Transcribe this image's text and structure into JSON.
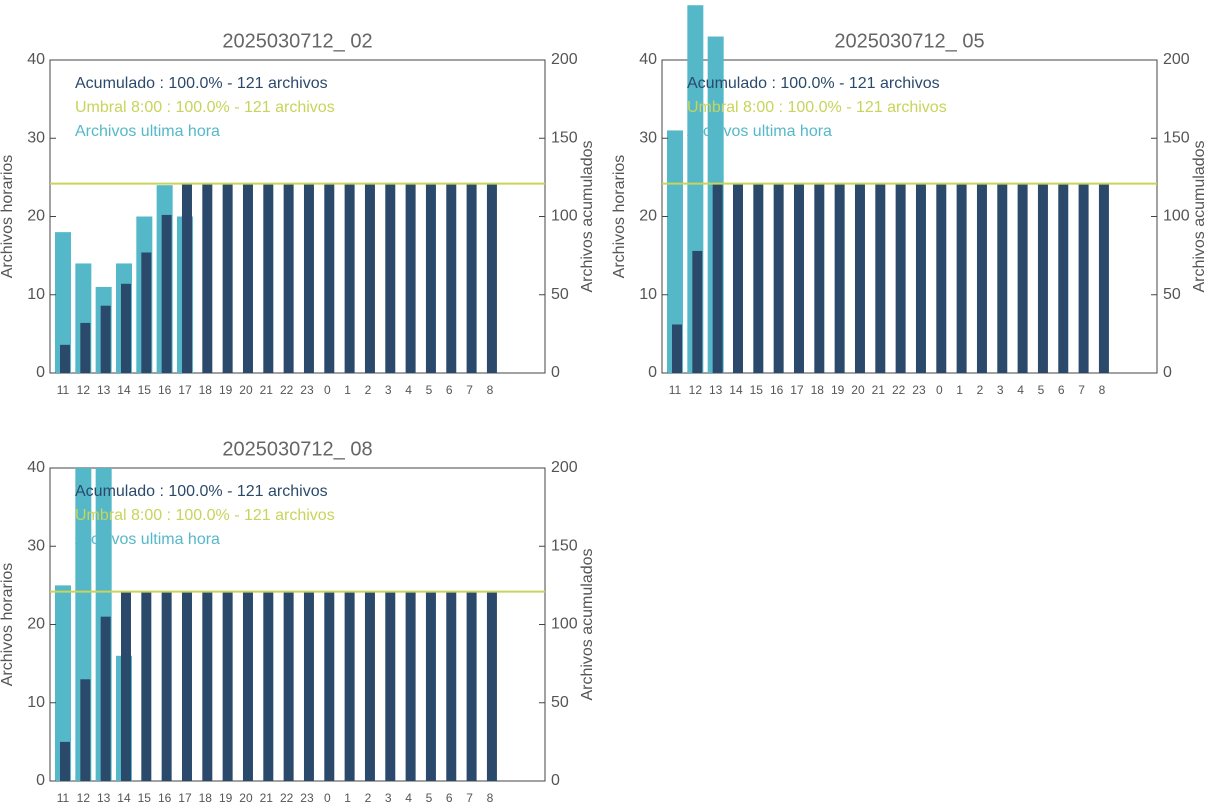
{
  "chart_data": [
    {
      "type": "bar",
      "title": "2025030712_ 02",
      "ylabel": "Archivos horarios",
      "y2label": "Archivos acumulados",
      "categories": [
        "11",
        "12",
        "13",
        "14",
        "15",
        "16",
        "17",
        "18",
        "19",
        "20",
        "21",
        "22",
        "23",
        "0",
        "1",
        "2",
        "3",
        "4",
        "5",
        "6",
        "7",
        "8"
      ],
      "ylim": [
        0,
        40
      ],
      "yticks": [
        0,
        10,
        20,
        30,
        40
      ],
      "y2lim": [
        0,
        200
      ],
      "y2ticks": [
        0,
        50,
        100,
        150,
        200
      ],
      "series": [
        {
          "name": "Acumulado : 100.0% - 121 archivos",
          "color": "#2b4a6b",
          "axis": "y2",
          "values": [
            18,
            32,
            43,
            57,
            77,
            101,
            121,
            121,
            121,
            121,
            121,
            121,
            121,
            121,
            121,
            121,
            121,
            121,
            121,
            121,
            121,
            121
          ]
        },
        {
          "name": "Archivos ultima hora",
          "color": "#55b8c8",
          "values": [
            18,
            14,
            11,
            14,
            20,
            24,
            20,
            null,
            null,
            null,
            null,
            null,
            null,
            null,
            null,
            null,
            null,
            null,
            null,
            null,
            null,
            null
          ]
        }
      ],
      "threshold": {
        "name": "Umbral 8:00 : 100.0% - 121 archivos",
        "value": 121,
        "axis": "y2",
        "color": "#c8d45a"
      }
    },
    {
      "type": "bar",
      "title": "2025030712_ 05",
      "ylabel": "Archivos horarios",
      "y2label": "Archivos acumulados",
      "categories": [
        "11",
        "12",
        "13",
        "14",
        "15",
        "16",
        "17",
        "18",
        "19",
        "20",
        "21",
        "22",
        "23",
        "0",
        "1",
        "2",
        "3",
        "4",
        "5",
        "6",
        "7",
        "8"
      ],
      "ylim": [
        0,
        40
      ],
      "yticks": [
        0,
        10,
        20,
        30,
        40
      ],
      "y2lim": [
        0,
        200
      ],
      "y2ticks": [
        0,
        50,
        100,
        150,
        200
      ],
      "series": [
        {
          "name": "Acumulado : 100.0% - 121 archivos",
          "color": "#2b4a6b",
          "axis": "y2",
          "values": [
            31,
            78,
            121,
            121,
            121,
            121,
            121,
            121,
            121,
            121,
            121,
            121,
            121,
            121,
            121,
            121,
            121,
            121,
            121,
            121,
            121,
            121
          ]
        },
        {
          "name": "Archivos ultima hora",
          "color": "#55b8c8",
          "values": [
            31,
            47,
            43,
            null,
            null,
            null,
            null,
            null,
            null,
            null,
            null,
            null,
            null,
            null,
            null,
            null,
            null,
            null,
            null,
            null,
            null,
            null
          ]
        }
      ],
      "threshold": {
        "name": "Umbral 8:00 : 100.0% - 121 archivos",
        "value": 121,
        "axis": "y2",
        "color": "#c8d45a"
      }
    },
    {
      "type": "bar",
      "title": "2025030712_ 08",
      "ylabel": "Archivos horarios",
      "y2label": "Archivos acumulados",
      "categories": [
        "11",
        "12",
        "13",
        "14",
        "15",
        "16",
        "17",
        "18",
        "19",
        "20",
        "21",
        "22",
        "23",
        "0",
        "1",
        "2",
        "3",
        "4",
        "5",
        "6",
        "7",
        "8"
      ],
      "ylim": [
        0,
        40
      ],
      "yticks": [
        0,
        10,
        20,
        30,
        40
      ],
      "y2lim": [
        0,
        200
      ],
      "y2ticks": [
        0,
        50,
        100,
        150,
        200
      ],
      "series": [
        {
          "name": "Acumulado : 100.0% - 121 archivos",
          "color": "#2b4a6b",
          "axis": "y2",
          "values": [
            25,
            65,
            105,
            121,
            121,
            121,
            121,
            121,
            121,
            121,
            121,
            121,
            121,
            121,
            121,
            121,
            121,
            121,
            121,
            121,
            121,
            121
          ]
        },
        {
          "name": "Archivos ultima hora",
          "color": "#55b8c8",
          "values": [
            25,
            40,
            40,
            16,
            null,
            null,
            null,
            null,
            null,
            null,
            null,
            null,
            null,
            null,
            null,
            null,
            null,
            null,
            null,
            null,
            null,
            null
          ]
        }
      ],
      "threshold": {
        "name": "Umbral 8:00 : 100.0% - 121 archivos",
        "value": 121,
        "axis": "y2",
        "color": "#c8d45a"
      }
    }
  ]
}
